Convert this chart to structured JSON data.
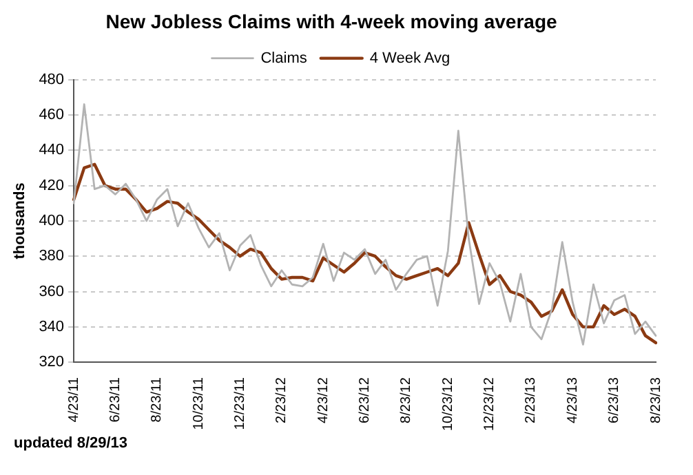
{
  "chart_data": {
    "type": "line",
    "title": "New Jobless Claims with 4-week moving average",
    "ylabel": "thousands",
    "annotations": [
      "updated 8/29/13"
    ],
    "categories": [
      "4/23/11",
      null,
      null,
      null,
      "6/23/11",
      null,
      null,
      null,
      "8/23/11",
      null,
      null,
      null,
      "10/23/11",
      null,
      null,
      null,
      "12/23/11",
      null,
      null,
      null,
      "2/23/12",
      null,
      null,
      null,
      "4/23/12",
      null,
      null,
      null,
      "6/23/12",
      null,
      null,
      null,
      "8/23/12",
      null,
      null,
      null,
      "10/23/12",
      null,
      null,
      null,
      "12/23/12",
      null,
      null,
      null,
      "2/23/13",
      null,
      null,
      null,
      "4/23/13",
      null,
      null,
      null,
      "6/23/13",
      null,
      null,
      null,
      "8/23/13"
    ],
    "series": [
      {
        "name": "Claims",
        "color": "#b3b3b3",
        "values": [
          410,
          466,
          418,
          420,
          415,
          421,
          412,
          400,
          412,
          418,
          397,
          410,
          396,
          385,
          393,
          372,
          386,
          392,
          375,
          363,
          372,
          364,
          363,
          368,
          387,
          366,
          382,
          378,
          384,
          370,
          378,
          361,
          370,
          378,
          380,
          352,
          383,
          451,
          390,
          353,
          376,
          365,
          343,
          370,
          340,
          333,
          350,
          388,
          354,
          330,
          364,
          342,
          355,
          358,
          336,
          343,
          335
        ]
      },
      {
        "name": "4 Week Avg",
        "color": "#8b3a12",
        "values": [
          412,
          430,
          432,
          420,
          418,
          418,
          412,
          405,
          407,
          411,
          410,
          405,
          401,
          395,
          389,
          385,
          380,
          384,
          382,
          373,
          367,
          368,
          368,
          366,
          379,
          375,
          371,
          376,
          382,
          380,
          374,
          369,
          367,
          369,
          371,
          373,
          369,
          376,
          399,
          381,
          364,
          369,
          360,
          358,
          354,
          346,
          349,
          361,
          347,
          340,
          340,
          352,
          347,
          350,
          346,
          335,
          331
        ]
      }
    ],
    "ylim": [
      320,
      480
    ],
    "yticks": [
      320,
      340,
      360,
      380,
      400,
      420,
      440,
      460,
      480
    ],
    "grid": "y",
    "legend": "top"
  }
}
